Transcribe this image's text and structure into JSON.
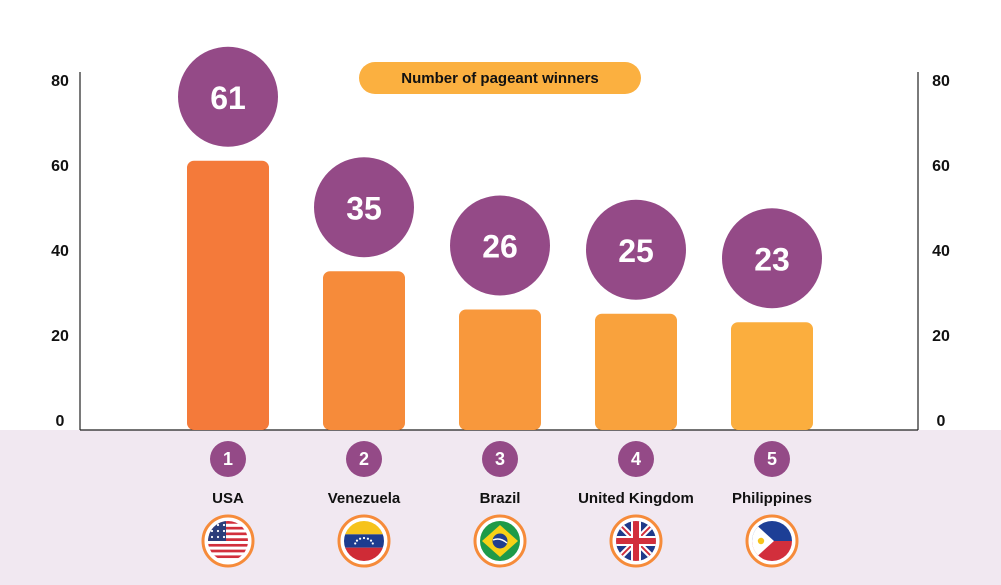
{
  "chart_data": {
    "type": "bar",
    "title": "",
    "legend": "Number of pageant winners",
    "categories": [
      "USA",
      "Venezuela",
      "Brazil",
      "United Kingdom",
      "Philippines"
    ],
    "ranks": [
      "1",
      "2",
      "3",
      "4",
      "5"
    ],
    "values": [
      61,
      35,
      26,
      25,
      23
    ],
    "ylim": [
      0,
      80
    ],
    "yticks": [
      "0",
      "20",
      "40",
      "60",
      "80"
    ],
    "dual_y_axis": true,
    "flags": [
      "usa-flag-icon",
      "venezuela-flag-icon",
      "brazil-flag-icon",
      "uk-flag-icon",
      "philippines-flag-icon"
    ],
    "colors": {
      "bars": [
        "#f47a3a",
        "#f68b3a",
        "#f8983c",
        "#f9a23d",
        "#fbae3e"
      ],
      "bubble": "#944a87",
      "legend": "#fbb040",
      "band": "#f1e8f1"
    }
  }
}
